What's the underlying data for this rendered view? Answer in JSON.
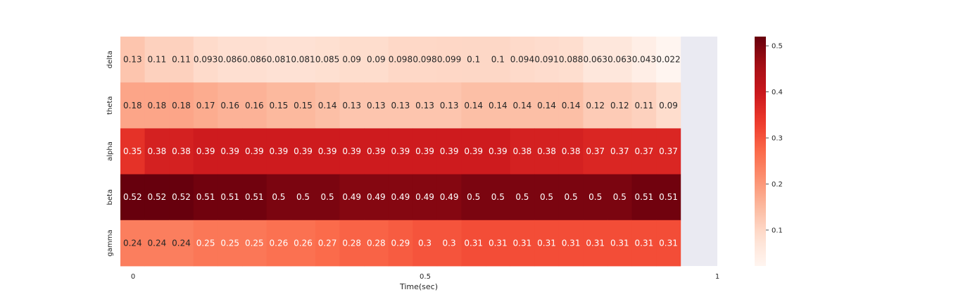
{
  "chart_data": {
    "type": "heatmap",
    "title": "",
    "xlabel": "Time(sec)",
    "ylabel": "",
    "rows": [
      "delta",
      "theta",
      "alpha",
      "beta",
      "gamma"
    ],
    "x_ticks": [
      0,
      0.5,
      1
    ],
    "x_tick_labels": [
      "0",
      "0.5",
      "1"
    ],
    "xlim": [
      0,
      1
    ],
    "colormap": "Reds",
    "color_range": [
      0.022,
      0.52
    ],
    "colorbar_ticks": [
      0.1,
      0.2,
      0.3,
      0.4,
      0.5
    ],
    "colorbar_tick_labels": [
      "0.1",
      "0.2",
      "0.3",
      "0.4",
      "0.5"
    ],
    "empty_region_color": "#eaeaf2",
    "values": [
      [
        "0.13",
        "0.11",
        "0.11",
        "0.093",
        "0.086",
        "0.086",
        "0.081",
        "0.081",
        "0.085",
        "0.09",
        "0.09",
        "0.098",
        "0.098",
        "0.099",
        "0.1",
        "0.1",
        "0.094",
        "0.091",
        "0.088",
        "0.063",
        "0.063",
        "0.043",
        "0.022"
      ],
      [
        "0.18",
        "0.18",
        "0.18",
        "0.17",
        "0.16",
        "0.16",
        "0.15",
        "0.15",
        "0.14",
        "0.13",
        "0.13",
        "0.13",
        "0.13",
        "0.13",
        "0.14",
        "0.14",
        "0.14",
        "0.14",
        "0.14",
        "0.12",
        "0.12",
        "0.11",
        "0.09"
      ],
      [
        "0.35",
        "0.38",
        "0.38",
        "0.39",
        "0.39",
        "0.39",
        "0.39",
        "0.39",
        "0.39",
        "0.39",
        "0.39",
        "0.39",
        "0.39",
        "0.39",
        "0.39",
        "0.39",
        "0.38",
        "0.38",
        "0.38",
        "0.37",
        "0.37",
        "0.37",
        "0.37"
      ],
      [
        "0.52",
        "0.52",
        "0.52",
        "0.51",
        "0.51",
        "0.51",
        "0.5",
        "0.5",
        "0.5",
        "0.49",
        "0.49",
        "0.49",
        "0.49",
        "0.49",
        "0.5",
        "0.5",
        "0.5",
        "0.5",
        "0.5",
        "0.5",
        "0.5",
        "0.51",
        "0.51"
      ],
      [
        "0.24",
        "0.24",
        "0.24",
        "0.25",
        "0.25",
        "0.25",
        "0.26",
        "0.26",
        "0.27",
        "0.28",
        "0.28",
        "0.29",
        "0.3",
        "0.3",
        "0.31",
        "0.31",
        "0.31",
        "0.31",
        "0.31",
        "0.31",
        "0.31",
        "0.31",
        "0.31"
      ]
    ]
  }
}
